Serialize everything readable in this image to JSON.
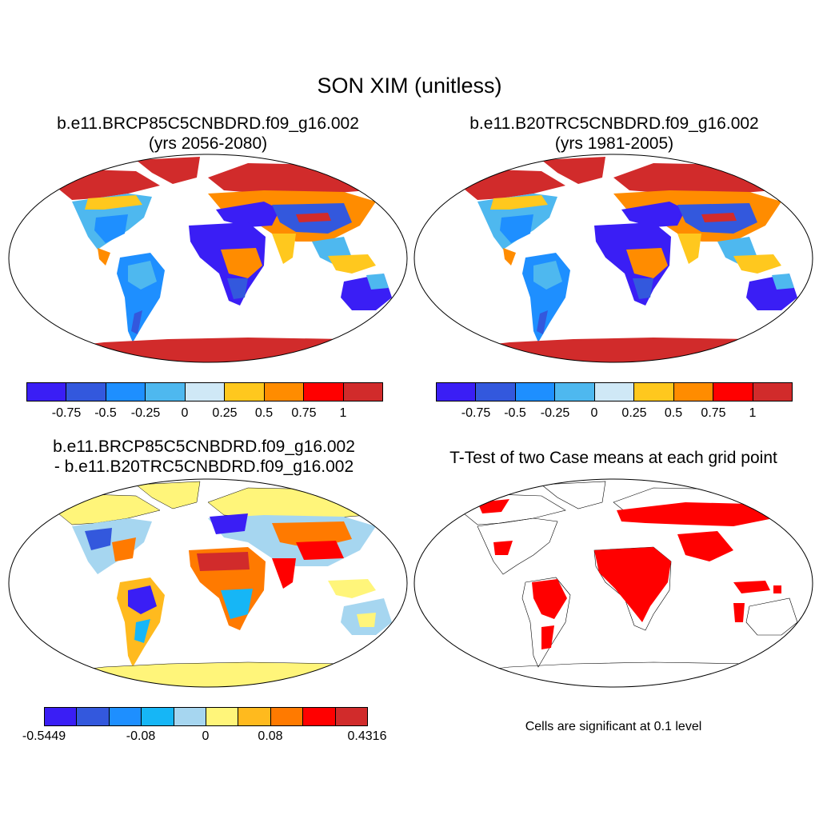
{
  "figure": {
    "title": "SON XIM (unitless)"
  },
  "panels": [
    {
      "id": "future",
      "title_line1": "b.e11.BRCP85C5CNBDRD.f09_g16.002",
      "title_line2": "(yrs 2056-2080)",
      "colorbar": {
        "colors": [
          "#3a1ef5",
          "#3358dd",
          "#1e8fff",
          "#4eb8ef",
          "#cfe8f6",
          "#ffc81e",
          "#ff8c00",
          "#ff0000",
          "#d12b2b"
        ],
        "labels": [
          "-0.75",
          "-0.5",
          "-0.25",
          "0",
          "0.25",
          "0.5",
          "0.75",
          "1"
        ]
      }
    },
    {
      "id": "historical",
      "title_line1": "b.e11.B20TRC5CNBDRD.f09_g16.002",
      "title_line2": "(yrs 1981-2005)",
      "colorbar": {
        "colors": [
          "#3a1ef5",
          "#3358dd",
          "#1e8fff",
          "#4eb8ef",
          "#cfe8f6",
          "#ffc81e",
          "#ff8c00",
          "#ff0000",
          "#d12b2b"
        ],
        "labels": [
          "-0.75",
          "-0.5",
          "-0.25",
          "0",
          "0.25",
          "0.5",
          "0.75",
          "1"
        ]
      }
    },
    {
      "id": "difference",
      "title_line1": "b.e11.BRCP85C5CNBDRD.f09_g16.002",
      "title_line2": "- b.e11.B20TRC5CNBDRD.f09_g16.002",
      "colorbar": {
        "colors": [
          "#3a1ef5",
          "#3358dd",
          "#1e8fff",
          "#16b6f6",
          "#a6d6f0",
          "#fff57a",
          "#ffba1e",
          "#ff7a00",
          "#ff0000",
          "#d12b2b"
        ],
        "labels": [
          "-0.5449",
          "-0.08",
          "0",
          "0.08",
          "0.4316"
        ]
      }
    },
    {
      "id": "ttest",
      "title_line1": "T-Test of two Case means at each grid point",
      "note": "Cells are significant at 0.1 level",
      "sig_color": "#ff0000"
    }
  ]
}
